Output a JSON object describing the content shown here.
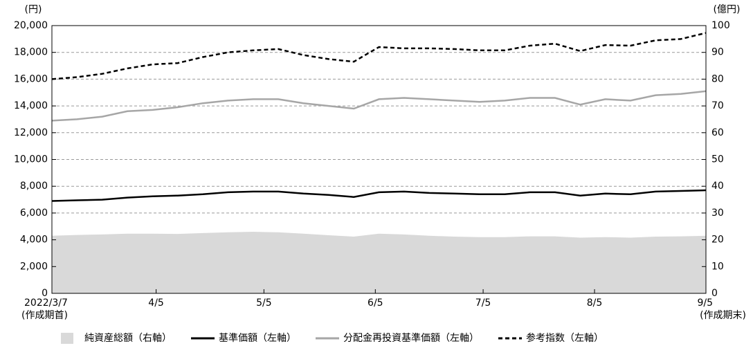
{
  "chart_data": {
    "type": "line",
    "y_unit": "(円)",
    "y2_unit": "(億円)",
    "x": [
      "2022-03-07",
      "2022-03-14",
      "2022-03-21",
      "2022-03-28",
      "2022-04-04",
      "2022-04-11",
      "2022-04-18",
      "2022-04-25",
      "2022-05-02",
      "2022-05-09",
      "2022-05-16",
      "2022-05-23",
      "2022-05-30",
      "2022-06-06",
      "2022-06-13",
      "2022-06-20",
      "2022-06-27",
      "2022-07-04",
      "2022-07-11",
      "2022-07-18",
      "2022-07-25",
      "2022-08-01",
      "2022-08-08",
      "2022-08-15",
      "2022-08-22",
      "2022-08-29",
      "2022-09-05"
    ],
    "xlim": [
      "2022-03-07",
      "2022-09-05"
    ],
    "xticks": [
      {
        "value": "2022-03-07",
        "label": "2022/3/7"
      },
      {
        "value": "2022-04-05",
        "label": "4/5"
      },
      {
        "value": "2022-05-05",
        "label": "5/5"
      },
      {
        "value": "2022-06-05",
        "label": "6/5"
      },
      {
        "value": "2022-07-05",
        "label": "7/5"
      },
      {
        "value": "2022-08-05",
        "label": "8/5"
      },
      {
        "value": "2022-09-05",
        "label": "9/5"
      }
    ],
    "x_start_note": "(作成期首)",
    "x_end_note": "(作成期末)",
    "ylim": [
      0,
      20000
    ],
    "yticks": [
      0,
      {
        "value": 2000,
        "label": "2,000"
      },
      {
        "value": 4000,
        "label": "4,000"
      },
      {
        "value": 6000,
        "label": "6,000"
      },
      {
        "value": 8000,
        "label": "8,000"
      },
      {
        "value": 10000,
        "label": "10,000"
      },
      {
        "value": 12000,
        "label": "12,000"
      },
      {
        "value": 14000,
        "label": "14,000"
      },
      {
        "value": 16000,
        "label": "16,000"
      },
      {
        "value": 18000,
        "label": "18,000"
      },
      {
        "value": 20000,
        "label": "20,000"
      }
    ],
    "y2lim": [
      0,
      100
    ],
    "y2ticks": [
      0,
      10,
      20,
      30,
      40,
      50,
      60,
      70,
      80,
      90,
      100
    ],
    "grid": true,
    "legend": "bottom",
    "series": [
      {
        "name": "純資産総額（右軸）",
        "color": "#d9d9d9",
        "style": "area",
        "axis": "y2",
        "values": [
          21.5,
          21.8,
          22,
          22.3,
          22.3,
          22.2,
          22.5,
          22.8,
          23,
          22.8,
          22.3,
          21.7,
          21.2,
          22.3,
          22,
          21.5,
          21.2,
          21,
          21,
          21.3,
          21.3,
          20.8,
          21,
          20.8,
          21.2,
          21.3,
          21.5
        ]
      },
      {
        "name": "基準価額（左軸）",
        "color": "#000000",
        "style": "solid",
        "values": [
          6900,
          6950,
          7000,
          7150,
          7250,
          7300,
          7400,
          7550,
          7600,
          7600,
          7450,
          7350,
          7200,
          7550,
          7600,
          7500,
          7450,
          7400,
          7400,
          7550,
          7550,
          7300,
          7450,
          7400,
          7600,
          7650,
          7700
        ]
      },
      {
        "name": "分配金再投資基準価額（左軸）",
        "color": "#a6a6a6",
        "style": "solid",
        "values": [
          12900,
          13000,
          13200,
          13600,
          13700,
          13900,
          14200,
          14400,
          14500,
          14500,
          14200,
          14000,
          13800,
          14500,
          14600,
          14500,
          14400,
          14300,
          14400,
          14600,
          14600,
          14100,
          14500,
          14400,
          14800,
          14900,
          15100
        ]
      },
      {
        "name": "参考指数（左軸）",
        "color": "#000000",
        "style": "dashed",
        "values": [
          16000,
          16150,
          16400,
          16800,
          17100,
          17200,
          17650,
          18000,
          18150,
          18250,
          17800,
          17500,
          17300,
          18400,
          18300,
          18300,
          18250,
          18150,
          18150,
          18500,
          18650,
          18100,
          18550,
          18500,
          18900,
          19000,
          19450
        ]
      }
    ]
  }
}
